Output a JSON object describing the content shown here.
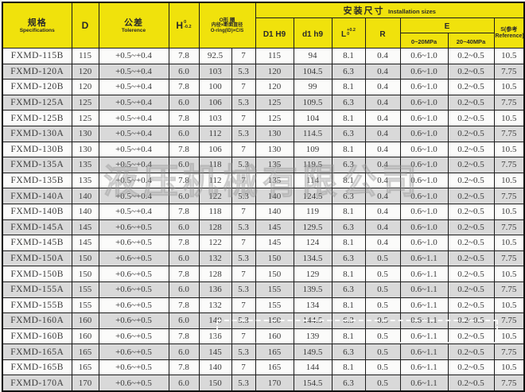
{
  "header": {
    "spec_zh": "规格",
    "spec_en": "Specifications",
    "d": "D",
    "tol_zh": "公差",
    "tol_en": "Tolerence",
    "h_base": "H",
    "h_sup": "0",
    "h_sub": "-0.2",
    "oring_l1": "O形 圈",
    "oring_l2": "内径×断面直径",
    "oring_l3": "O-ring(ID)×C/S",
    "install_zh": "安装尺寸",
    "install_en": "Installation sizes",
    "d1": "D1 H9",
    "d1h": "d1 h9",
    "l_base": "L",
    "l_sup": "+0.2",
    "l_sub": "0",
    "r": "R",
    "e": "E",
    "e_low": "0~20MPa",
    "e_high": "20~40MPa",
    "s_l1": "S(参考",
    "s_l2": "Reference)"
  },
  "rows": [
    [
      "FXMD-115B",
      "115",
      "+0.5~+0.4",
      "7.8",
      "92.5",
      "7",
      "115",
      "94",
      "8.1",
      "0.4",
      "0.6~1.0",
      "0.2~0.5",
      "10.5"
    ],
    [
      "FXMD-120A",
      "120",
      "+0.5~+0.4",
      "6.0",
      "103",
      "5.3",
      "120",
      "104.5",
      "6.3",
      "0.4",
      "0.6~1.0",
      "0.2~0.5",
      "7.75"
    ],
    [
      "FXMD-120B",
      "120",
      "+0.5~+0.4",
      "7.8",
      "100",
      "7",
      "120",
      "99",
      "8.1",
      "0.4",
      "0.6~1.0",
      "0.2~0.5",
      "10.5"
    ],
    [
      "FXMD-125A",
      "125",
      "+0.5~+0.4",
      "6.0",
      "106",
      "5.3",
      "125",
      "109.5",
      "6.3",
      "0.4",
      "0.6~1.0",
      "0.2~0.5",
      "7.75"
    ],
    [
      "FXMD-125B",
      "125",
      "+0.5~+0.4",
      "7.8",
      "103",
      "7",
      "125",
      "104",
      "8.1",
      "0.4",
      "0.6~1.0",
      "0.2~0.5",
      "10.5"
    ],
    [
      "FXMD-130A",
      "130",
      "+0.5~+0.4",
      "6.0",
      "112",
      "5.3",
      "130",
      "114.5",
      "6.3",
      "0.4",
      "0.6~1.0",
      "0.2~0.5",
      "7.75"
    ],
    [
      "FXMD-130B",
      "130",
      "+0.5~+0.4",
      "7.8",
      "106",
      "7",
      "130",
      "109",
      "8.1",
      "0.4",
      "0.6~1.0",
      "0.2~0.5",
      "10.5"
    ],
    [
      "FXMD-135A",
      "135",
      "+0.5~+0.4",
      "6.0",
      "118",
      "5.3",
      "135",
      "119.5",
      "6.3",
      "0.4",
      "0.6~1.0",
      "0.2~0.5",
      "7.75"
    ],
    [
      "FXMD-135B",
      "135",
      "+0.5~+0.4",
      "7.8",
      "112",
      "7",
      "135",
      "114",
      "8.1",
      "0.4",
      "0.6~1.0",
      "0.2~0.5",
      "10.5"
    ],
    [
      "FXMD-140A",
      "140",
      "+0.5~+0.4",
      "6.0",
      "122",
      "5.3",
      "140",
      "124.5",
      "6.3",
      "0.4",
      "0.6~1.0",
      "0.2~0.5",
      "7.75"
    ],
    [
      "FXMD-140B",
      "140",
      "+0.5~+0.4",
      "7.8",
      "118",
      "7",
      "140",
      "119",
      "8.1",
      "0.4",
      "0.6~1.0",
      "0.2~0.5",
      "10.5"
    ],
    [
      "FXMD-145A",
      "145",
      "+0.6~+0.5",
      "6.0",
      "128",
      "5.3",
      "145",
      "129.5",
      "6.3",
      "0.4",
      "0.6~1.0",
      "0.2~0.5",
      "7.75"
    ],
    [
      "FXMD-145B",
      "145",
      "+0.6~+0.5",
      "7.8",
      "122",
      "7",
      "145",
      "124",
      "8.1",
      "0.4",
      "0.6~1.0",
      "0.2~0.5",
      "10.5"
    ],
    [
      "FXMD-150A",
      "150",
      "+0.6~+0.5",
      "6.0",
      "132",
      "5.3",
      "150",
      "134.5",
      "6.3",
      "0.5",
      "0.6~1.1",
      "0.2~0.5",
      "7.75"
    ],
    [
      "FXMD-150B",
      "150",
      "+0.6~+0.5",
      "7.8",
      "128",
      "7",
      "150",
      "129",
      "8.1",
      "0.5",
      "0.6~1.1",
      "0.2~0.5",
      "10.5"
    ],
    [
      "FXMD-155A",
      "155",
      "+0.6~+0.5",
      "6.0",
      "136",
      "5.3",
      "155",
      "139.5",
      "6.3",
      "0.5",
      "0.6~1.1",
      "0.2~0.5",
      "7.75"
    ],
    [
      "FXMD-155B",
      "155",
      "+0.6~+0.5",
      "7.8",
      "132",
      "7",
      "155",
      "134",
      "8.1",
      "0.5",
      "0.6~1.1",
      "0.2~0.5",
      "10.5"
    ],
    [
      "FXMD-160A",
      "160",
      "+0.6~+0.5",
      "6.0",
      "140",
      "5.3",
      "160",
      "144.5",
      "6.3",
      "0.5",
      "0.6~1.1",
      "0.2~0.5",
      "7.75"
    ],
    [
      "FXMD-160B",
      "160",
      "+0.6~+0.5",
      "7.8",
      "136",
      "7",
      "160",
      "139",
      "8.1",
      "0.5",
      "0.6~1.1",
      "0.2~0.5",
      "10.5"
    ],
    [
      "FXMD-165A",
      "165",
      "+0.6~+0.5",
      "6.0",
      "145",
      "5.3",
      "165",
      "149.5",
      "6.3",
      "0.5",
      "0.6~1.1",
      "0.2~0.5",
      "7.75"
    ],
    [
      "FXMD-165B",
      "165",
      "+0.6~+0.5",
      "7.8",
      "140",
      "7",
      "165",
      "144",
      "8.1",
      "0.5",
      "0.6~1.1",
      "0.2~0.5",
      "10.5"
    ],
    [
      "FXMD-170A",
      "170",
      "+0.6~+0.5",
      "6.0",
      "150",
      "5.3",
      "170",
      "154.5",
      "6.3",
      "0.5",
      "0.6~1.1",
      "0.2~0.5",
      "7.75"
    ]
  ],
  "watermark_text": "液压机械有限公司",
  "colors": {
    "header_bg": "#f0e20c",
    "row_white": "#fbfbfa",
    "row_gray": "#d9d9d9",
    "border": "#1c1c1c",
    "text": "#3b3b3b"
  }
}
